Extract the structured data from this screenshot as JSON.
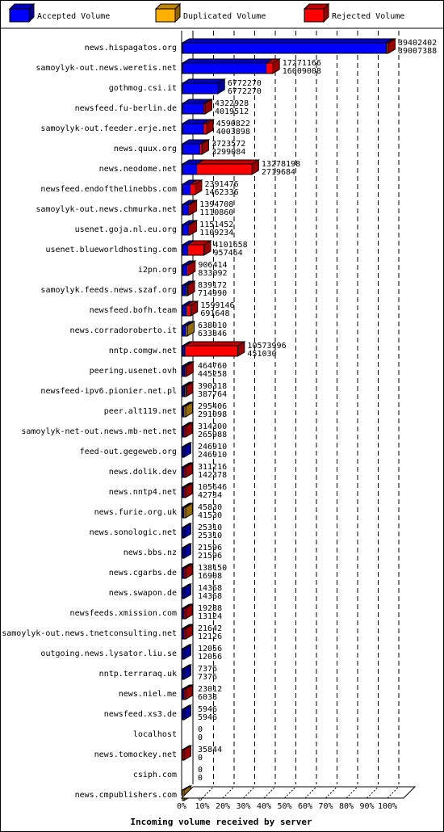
{
  "chart_data": {
    "type": "bar",
    "orientation": "horizontal",
    "stacked": true,
    "legend_position": "top",
    "xlabel": "Incoming volume received by server",
    "x_ticks": [
      "0%",
      "10%",
      "20%",
      "30%",
      "40%",
      "50%",
      "60%",
      "70%",
      "80%",
      "90%",
      "100%"
    ],
    "xlim": [
      0,
      100
    ],
    "grid": true,
    "max_total": 39402402,
    "series": [
      {
        "name": "Accepted Volume",
        "color": "#0000ff"
      },
      {
        "name": "Duplicated Volume",
        "color": "#ffb000"
      },
      {
        "name": "Rejected Volume",
        "color": "#ff0000"
      }
    ],
    "categories": [
      "news.hispagatos.org",
      "samoylyk-out.news.weretis.net",
      "gothmog.csi.it",
      "newsfeed.fu-berlin.de",
      "samoylyk-out.feeder.erje.net",
      "news.quux.org",
      "news.neodome.net",
      "newsfeed.endofthelinebbs.com",
      "samoylyk-out.news.chmurka.net",
      "usenet.goja.nl.eu.org",
      "usenet.blueworldhosting.com",
      "i2pn.org",
      "samoylyk.feeds.news.szaf.org",
      "newsfeed.bofh.team",
      "news.corradoroberto.it",
      "nntp.comgw.net",
      "peering.usenet.ovh",
      "newsfeed-ipv6.pionier.net.pl",
      "peer.alt119.net",
      "samoylyk-net-out.news.mb-net.net",
      "feed-out.gegeweb.org",
      "news.dolik.dev",
      "news.nntp4.net",
      "news.furie.org.uk",
      "news.sonologic.net",
      "news.bbs.nz",
      "news.cgarbs.de",
      "news.swapon.de",
      "newsfeeds.xmission.com",
      "samoylyk-out.news.tnetconsulting.net",
      "outgoing.news.lysator.liu.se",
      "nntp.terraraq.uk",
      "news.niel.me",
      "newsfeed.xs3.de",
      "localhost",
      "news.tomockey.net",
      "csiph.com",
      "news.cmpublishers.com"
    ],
    "totals": [
      "39402402",
      "17271166",
      "6772270",
      "4322928",
      "4590822",
      "3723572",
      "13278198",
      "2391476",
      "1394708",
      "1151452",
      "4101658",
      "906414",
      "839172",
      "1599146",
      "638010",
      "10573996",
      "464760",
      "390318",
      "295406",
      "314300",
      "246910",
      "311216",
      "105646",
      "45830",
      "25310",
      "21596",
      "138150",
      "14368",
      "19288",
      "21642",
      "12056",
      "7376",
      "23012",
      "5946",
      "0",
      "35844",
      "0",
      "4236"
    ],
    "accepted": [
      "39007388",
      "16009008",
      "6772270",
      "4019512",
      "4003898",
      "3299084",
      "2719684",
      "1462336",
      "1110860",
      "1109234",
      "957464",
      "833092",
      "714990",
      "691648",
      "633846",
      "451030",
      "445258",
      "387764",
      "291098",
      "265988",
      "246910",
      "142378",
      "42734",
      "41530",
      "25310",
      "21596",
      "16908",
      "14368",
      "13124",
      "12126",
      "12056",
      "7376",
      "6038",
      "5946",
      "0",
      "0",
      "0",
      "0"
    ],
    "duplicated": [
      0,
      0,
      0,
      0,
      0,
      0,
      0,
      0,
      0,
      0,
      0,
      0,
      0,
      0,
      4164,
      0,
      0,
      0,
      4308,
      0,
      0,
      0,
      0,
      4300,
      0,
      0,
      0,
      0,
      0,
      0,
      0,
      0,
      0,
      0,
      0,
      0,
      0,
      4236
    ]
  }
}
